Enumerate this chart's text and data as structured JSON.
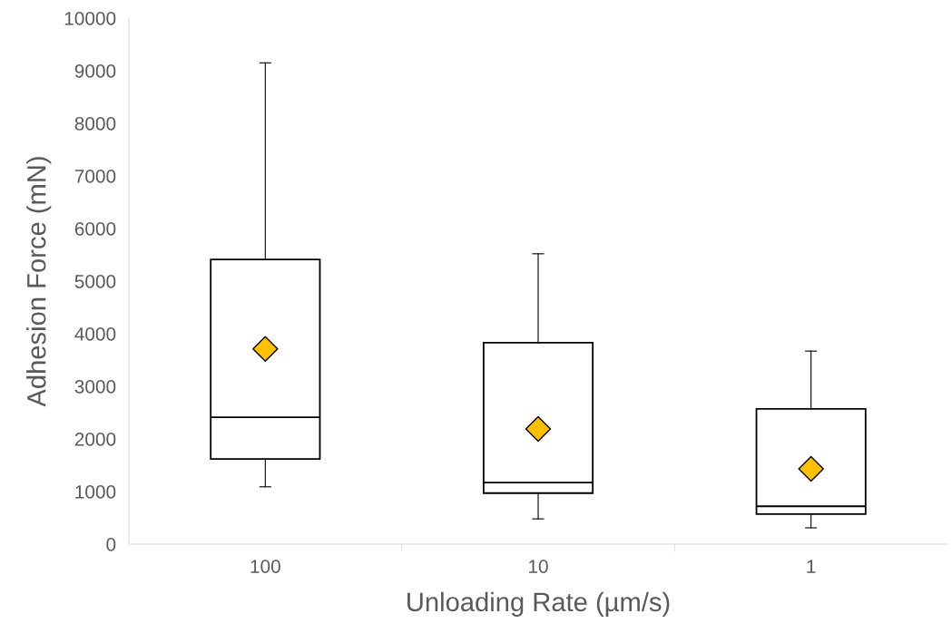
{
  "chart_data": {
    "type": "box",
    "xlabel": "Unloading Rate (µm/s)",
    "ylabel": "Adhesion Force (mN)",
    "categories": [
      "100",
      "10",
      "1"
    ],
    "boxes": [
      {
        "low": 1090,
        "q1": 1620,
        "median": 2410,
        "q3": 5410,
        "high": 9150
      },
      {
        "low": 480,
        "q1": 970,
        "median": 1170,
        "q3": 3830,
        "high": 5520
      },
      {
        "low": 310,
        "q1": 570,
        "median": 720,
        "q3": 2570,
        "high": 3670
      }
    ],
    "series": [
      {
        "type": "scatter",
        "x": [
          "100",
          "10",
          "1"
        ],
        "values": [
          3710,
          2190,
          1430
        ],
        "color": "#ffc000"
      }
    ],
    "marker": "diamond",
    "grid": false,
    "legend": false,
    "ylim": [
      0,
      10000
    ],
    "yticks": [
      0,
      1000,
      2000,
      3000,
      4000,
      5000,
      6000,
      7000,
      8000,
      9000,
      10000
    ]
  }
}
